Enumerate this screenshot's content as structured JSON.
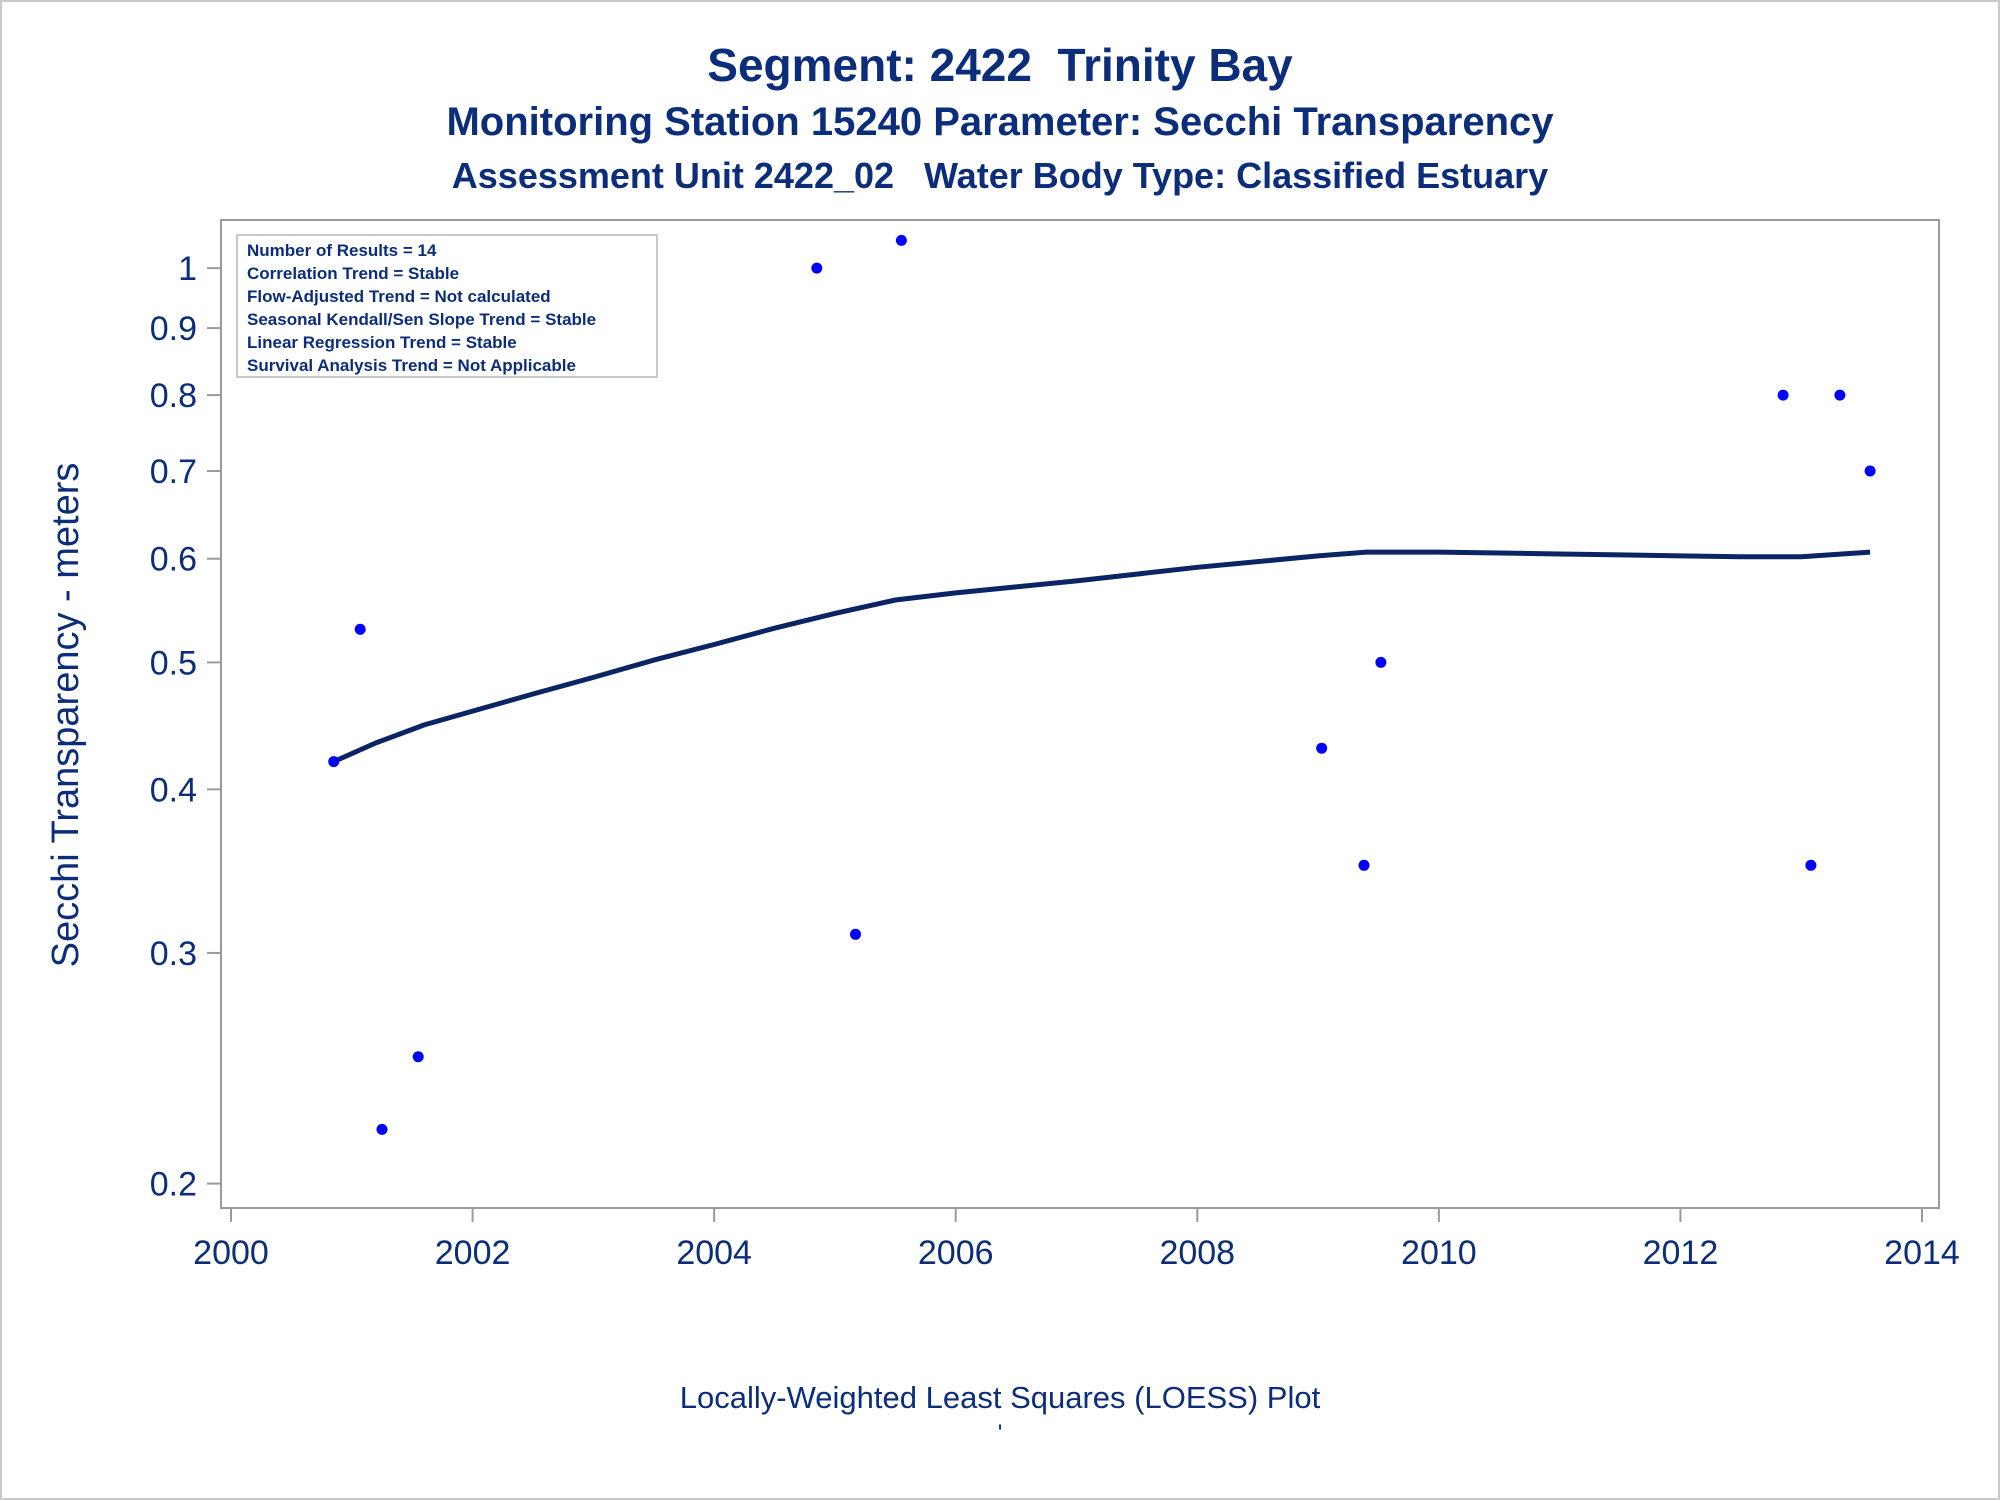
{
  "titles": {
    "line1": "Segment: 2422  Trinity Bay",
    "line2": "Monitoring Station 15240 Parameter: Secchi Transparency",
    "line3": "Assessment Unit 2422_02   Water Body Type: Classified Estuary"
  },
  "footnote": "Locally-Weighted Least Squares (LOESS) Plot",
  "footnote2": "'",
  "stats_box": [
    "Number of Results = 14",
    "Correlation Trend = Stable",
    "Flow-Adjusted Trend = Not calculated",
    "Seasonal Kendall/Sen Slope Trend = Stable",
    "Linear Regression Trend = Stable",
    "Survival Analysis Trend = Not Applicable"
  ],
  "colors": {
    "text": "#0b2d7a",
    "points": "#0000ff",
    "loess": "#0b2463",
    "axis": "#9a9a9a"
  },
  "chart_data": {
    "type": "scatter",
    "title": "Segment: 2422  Trinity Bay",
    "xlabel": "",
    "ylabel": "Secchi Transparency - meters",
    "y_scale": "log",
    "xlim": [
      2000,
      2014
    ],
    "ylim": [
      0.195,
      1.06
    ],
    "x_ticks": [
      2000,
      2002,
      2004,
      2006,
      2008,
      2010,
      2012,
      2014
    ],
    "y_ticks": [
      0.2,
      0.3,
      0.4,
      0.5,
      0.6,
      0.7,
      0.8,
      0.9,
      1
    ],
    "y_tick_labels": [
      "0.2",
      "0.3",
      "0.4",
      "0.5",
      "0.6",
      "0.7",
      "0.8",
      "0.9",
      "1"
    ],
    "grid": false,
    "legend": "none",
    "series": [
      {
        "type": "scatter",
        "x": [
          2000.85,
          2001.07,
          2001.25,
          2001.55,
          2004.85,
          2005.17,
          2005.55,
          2009.03,
          2009.38,
          2009.52,
          2012.85,
          2013.08,
          2013.32,
          2013.57
        ],
        "y": [
          0.42,
          0.53,
          0.22,
          0.25,
          1.0,
          0.31,
          1.05,
          0.43,
          0.35,
          0.5,
          0.8,
          0.35,
          0.8,
          0.7
        ]
      },
      {
        "type": "line",
        "x": [
          2000.85,
          2001.2,
          2001.6,
          2002.0,
          2002.5,
          2003.0,
          2003.5,
          2004.0,
          2004.5,
          2005.0,
          2005.5,
          2006.0,
          2006.5,
          2007.0,
          2007.5,
          2008.0,
          2008.5,
          2009.0,
          2009.4,
          2010.0,
          2010.5,
          2011.0,
          2011.5,
          2012.0,
          2012.5,
          2013.0,
          2013.57
        ],
        "y": [
          0.42,
          0.434,
          0.448,
          0.459,
          0.473,
          0.487,
          0.502,
          0.516,
          0.531,
          0.545,
          0.558,
          0.565,
          0.571,
          0.577,
          0.584,
          0.591,
          0.597,
          0.603,
          0.607,
          0.607,
          0.606,
          0.605,
          0.604,
          0.603,
          0.602,
          0.602,
          0.607
        ]
      }
    ]
  }
}
